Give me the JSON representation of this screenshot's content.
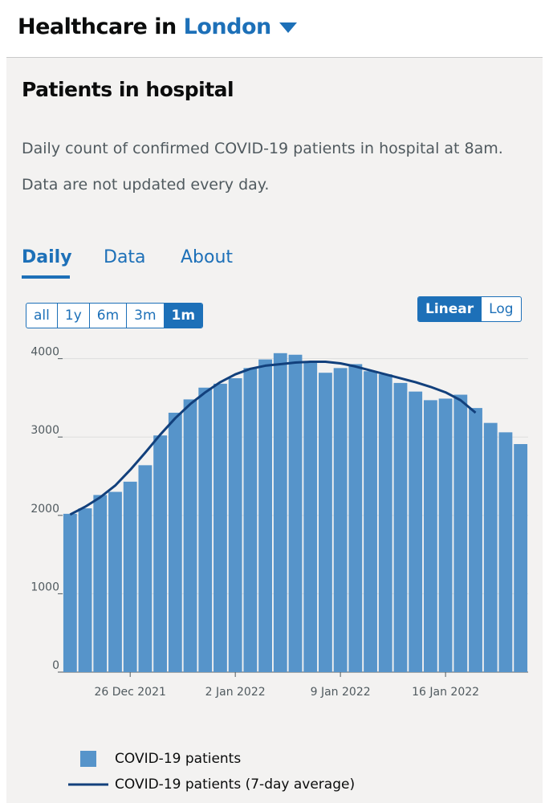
{
  "header": {
    "title": "Healthcare in",
    "location": "London"
  },
  "card": {
    "title": "Patients in hospital",
    "description": [
      "Daily count of confirmed COVID-19 patients in hospital at 8am.",
      "Data are not updated every day."
    ],
    "tabs": [
      "Daily",
      "Data",
      "About"
    ],
    "ranges": [
      "all",
      "1y",
      "6m",
      "3m",
      "1m"
    ],
    "scales": [
      "Linear",
      "Log"
    ]
  },
  "chart_data": {
    "type": "bar",
    "categories": [
      null,
      null,
      null,
      null,
      "26 Dec 2021",
      null,
      null,
      null,
      null,
      null,
      null,
      "2 Jan 2022",
      null,
      null,
      null,
      null,
      null,
      null,
      "9 Jan 2022",
      null,
      null,
      null,
      null,
      null,
      null,
      "16 Jan 2022",
      null,
      null,
      null,
      null,
      null
    ],
    "series": [
      {
        "name": "COVID-19 patients",
        "type": "bar",
        "color": "#5694ca",
        "values": [
          2020,
          2090,
          2260,
          2300,
          2430,
          2640,
          3020,
          3310,
          3480,
          3630,
          3680,
          3750,
          3880,
          3990,
          4070,
          4050,
          3950,
          3820,
          3880,
          3930,
          3840,
          3800,
          3690,
          3580,
          3470,
          3490,
          3540,
          3370,
          3180,
          3060,
          2910
        ]
      },
      {
        "name": "COVID-19 patients (7-day average)",
        "type": "line",
        "color": "#12407c",
        "values": [
          2010,
          2110,
          2230,
          2380,
          2580,
          2800,
          3030,
          3240,
          3420,
          3570,
          3700,
          3800,
          3870,
          3910,
          3930,
          3950,
          3960,
          3960,
          3940,
          3900,
          3850,
          3800,
          3750,
          3700,
          3640,
          3570,
          3470,
          3310,
          null,
          null,
          null
        ]
      }
    ],
    "ylim": [
      0,
      4150
    ],
    "yticks": [
      0,
      1000,
      2000,
      3000,
      4000
    ],
    "grid": true
  }
}
